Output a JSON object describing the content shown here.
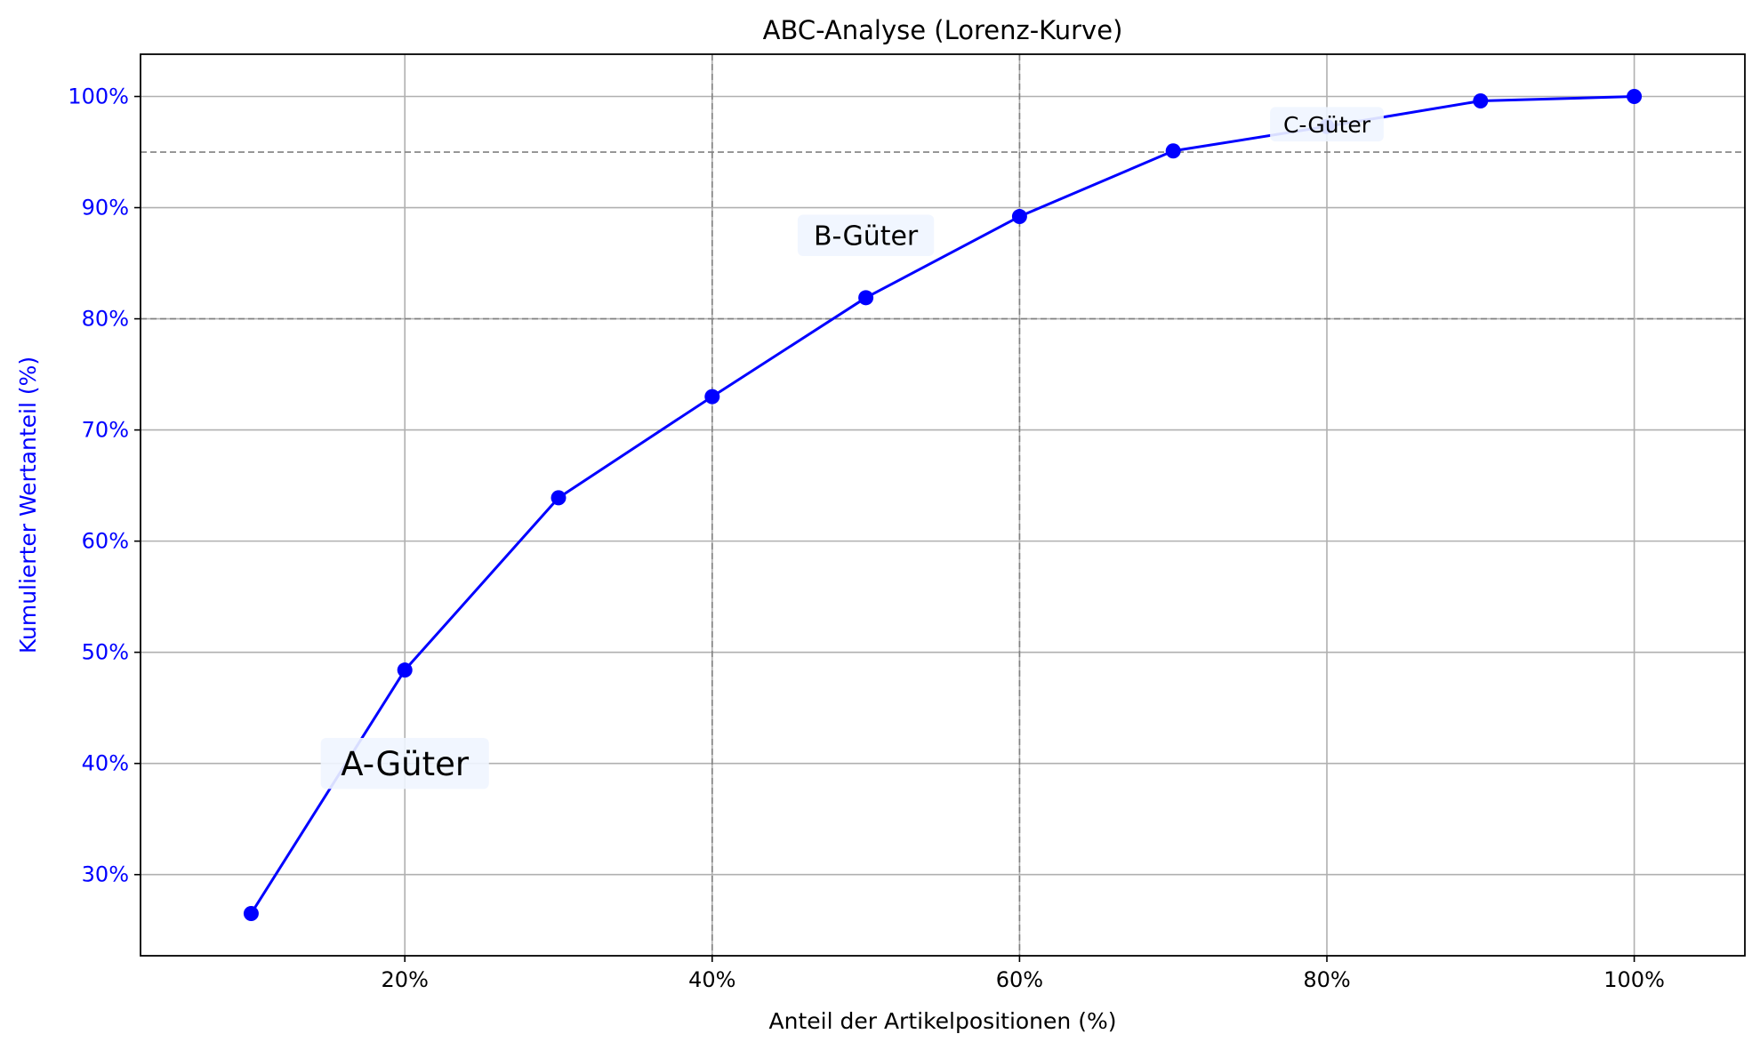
{
  "chart_data": {
    "type": "line",
    "title": "ABC-Analyse (Lorenz-Kurve)",
    "xlabel": "Anteil der Artikelpositionen (%)",
    "ylabel": "Kumulierter Wertanteil (%)",
    "x": [
      10,
      20,
      30,
      40,
      50,
      60,
      70,
      80,
      90,
      100
    ],
    "series": [
      {
        "values": [
          26.5,
          48.4,
          63.9,
          73.0,
          81.9,
          89.2,
          95.1,
          97.3,
          99.6,
          100.0
        ]
      }
    ],
    "xlim": [
      2.8,
      107.2
    ],
    "ylim": [
      22.7,
      103.8
    ],
    "xticks": [
      20,
      40,
      60,
      80,
      100
    ],
    "xtick_labels": [
      "20%",
      "40%",
      "60%",
      "80%",
      "100%"
    ],
    "yticks": [
      30,
      40,
      50,
      60,
      70,
      80,
      90,
      100
    ],
    "ytick_labels": [
      "30%",
      "40%",
      "50%",
      "60%",
      "70%",
      "80%",
      "90%",
      "100%"
    ],
    "grid": true,
    "threshold_lines": {
      "horizontal": [
        80,
        95
      ],
      "vertical": [
        40,
        60
      ]
    },
    "annotations": [
      {
        "text": "A-Güter",
        "x": 20,
        "y": 40
      },
      {
        "text": "B-Güter",
        "x": 50,
        "y": 87.5
      },
      {
        "text": "C-Güter",
        "x": 80,
        "y": 97.5
      }
    ],
    "colors": {
      "line": "#0000ff",
      "ytick_labels": "#0000ff",
      "ylabel": "#0000ff",
      "annotation_box": "#f0f5ff",
      "threshold": "#808080",
      "grid": "#b0b0b0"
    }
  }
}
